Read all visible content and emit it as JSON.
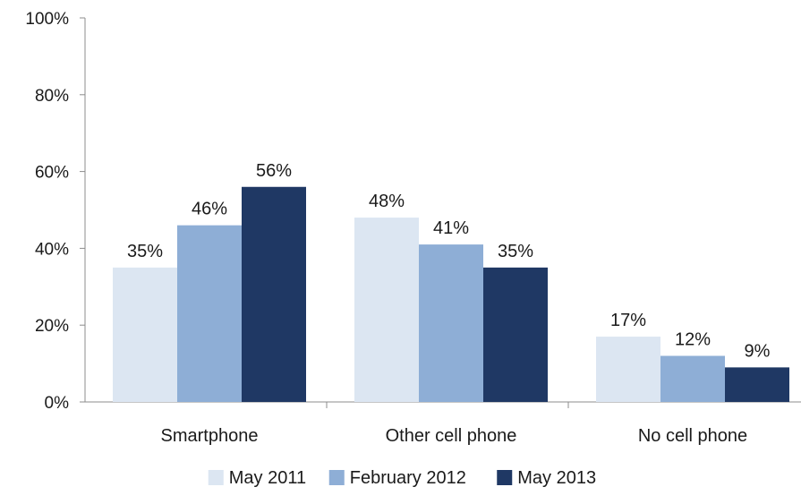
{
  "chart_data": {
    "type": "bar",
    "title": "",
    "xlabel": "",
    "ylabel": "",
    "categories": [
      "Smartphone",
      "Other cell phone",
      "No cell phone"
    ],
    "series": [
      {
        "name": "May 2011",
        "color": "#dce6f2",
        "values": [
          35,
          48,
          17
        ],
        "labels": [
          "35%",
          "48%",
          "17%"
        ]
      },
      {
        "name": "February 2012",
        "color": "#8eaed6",
        "values": [
          46,
          41,
          12
        ],
        "labels": [
          "46%",
          "41%",
          "12%"
        ]
      },
      {
        "name": "May 2013",
        "color": "#1f3864",
        "values": [
          56,
          35,
          9
        ],
        "labels": [
          "56%",
          "35%",
          "9%"
        ]
      }
    ],
    "ylim": [
      0,
      100
    ],
    "yticks": [
      0,
      20,
      40,
      60,
      80,
      100
    ],
    "ytick_labels": [
      "0%",
      "20%",
      "40%",
      "60%",
      "80%",
      "100%"
    ],
    "grid": false,
    "legend_position": "bottom"
  }
}
